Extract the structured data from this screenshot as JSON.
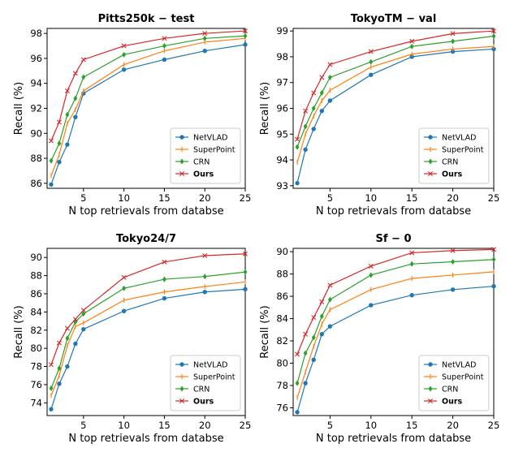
{
  "colors": {
    "NetVLAD": "#1f77b4",
    "SuperPoint": "#ff7f0e",
    "CRN": "#2ca02c",
    "Ours": "#d62728"
  },
  "chart_data": [
    {
      "type": "line",
      "title": "Pitts250k − test",
      "xlabel": "N top retrievals from databse",
      "ylabel": "Recall (%)",
      "x": [
        1,
        2,
        3,
        4,
        5,
        10,
        15,
        20,
        25
      ],
      "xlim": [
        0.5,
        25
      ],
      "ylim": [
        85.6,
        98.4
      ],
      "xticks": [
        5,
        10,
        15,
        20,
        25
      ],
      "yticks": [
        86,
        88,
        90,
        92,
        94,
        96,
        98
      ],
      "legend": "lower-right",
      "series": [
        {
          "name": "NetVLAD",
          "marker": "o",
          "values": [
            85.9,
            87.7,
            89.1,
            91.3,
            93.2,
            95.1,
            95.9,
            96.6,
            97.1
          ]
        },
        {
          "name": "SuperPoint",
          "marker": "|",
          "values": [
            86.6,
            88.3,
            90.8,
            91.9,
            93.4,
            95.5,
            96.6,
            97.3,
            97.6
          ]
        },
        {
          "name": "CRN",
          "marker": "d",
          "values": [
            87.8,
            89.2,
            91.5,
            92.8,
            94.5,
            96.3,
            97.0,
            97.6,
            97.8
          ]
        },
        {
          "name": "Ours",
          "marker": "x",
          "bold": true,
          "values": [
            89.4,
            90.9,
            93.4,
            94.8,
            95.9,
            97.0,
            97.6,
            98.0,
            98.2
          ]
        }
      ]
    },
    {
      "type": "line",
      "title": "TokyoTM − val",
      "xlabel": "N top retrievals from databse",
      "ylabel": "Recall (%)",
      "x": [
        1,
        2,
        3,
        4,
        5,
        10,
        15,
        20,
        25
      ],
      "xlim": [
        0.5,
        25
      ],
      "ylim": [
        92.9,
        99.1
      ],
      "xticks": [
        5,
        10,
        15,
        20,
        25
      ],
      "yticks": [
        93,
        94,
        95,
        96,
        97,
        98,
        99
      ],
      "legend": "lower-right",
      "series": [
        {
          "name": "NetVLAD",
          "marker": "o",
          "values": [
            93.1,
            94.4,
            95.2,
            95.9,
            96.3,
            97.3,
            98.0,
            98.2,
            98.3
          ]
        },
        {
          "name": "SuperPoint",
          "marker": "|",
          "values": [
            93.9,
            95.0,
            95.7,
            96.3,
            96.7,
            97.6,
            98.1,
            98.3,
            98.4
          ]
        },
        {
          "name": "CRN",
          "marker": "d",
          "values": [
            94.5,
            95.3,
            96.0,
            96.6,
            97.2,
            97.8,
            98.4,
            98.6,
            98.8
          ]
        },
        {
          "name": "Ours",
          "marker": "x",
          "bold": true,
          "values": [
            94.8,
            95.9,
            96.6,
            97.2,
            97.7,
            98.2,
            98.6,
            98.9,
            99.0
          ]
        }
      ]
    },
    {
      "type": "line",
      "title": "Tokyo24/7",
      "xlabel": "N top retrievals from databse",
      "ylabel": "Recall (%)",
      "x": [
        1,
        2,
        3,
        4,
        5,
        10,
        15,
        20,
        25
      ],
      "xlim": [
        0.5,
        25
      ],
      "ylim": [
        72.6,
        91.0
      ],
      "xticks": [
        5,
        10,
        15,
        20,
        25
      ],
      "yticks": [
        74,
        76,
        78,
        80,
        82,
        84,
        86,
        88,
        90
      ],
      "legend": "lower-right",
      "series": [
        {
          "name": "NetVLAD",
          "marker": "o",
          "values": [
            73.3,
            76.1,
            78.0,
            80.5,
            82.1,
            84.1,
            85.5,
            86.2,
            86.5
          ]
        },
        {
          "name": "SuperPoint",
          "marker": "|",
          "values": [
            74.8,
            77.0,
            80.3,
            82.4,
            82.8,
            85.3,
            86.2,
            86.8,
            87.3
          ]
        },
        {
          "name": "CRN",
          "marker": "d",
          "values": [
            75.6,
            77.8,
            81.1,
            82.9,
            83.8,
            86.6,
            87.6,
            87.9,
            88.4
          ]
        },
        {
          "name": "Ours",
          "marker": "x",
          "bold": true,
          "values": [
            78.2,
            80.6,
            82.2,
            83.2,
            84.2,
            87.8,
            89.5,
            90.2,
            90.4
          ]
        }
      ]
    },
    {
      "type": "line",
      "title": "Sf − 0",
      "xlabel": "N top retrievals from databse",
      "ylabel": "Recall (%)",
      "x": [
        1,
        2,
        3,
        4,
        5,
        10,
        15,
        20,
        25
      ],
      "xlim": [
        0.5,
        25
      ],
      "ylim": [
        75.3,
        90.3
      ],
      "xticks": [
        5,
        10,
        15,
        20,
        25
      ],
      "yticks": [
        76,
        78,
        80,
        82,
        84,
        86,
        88,
        90
      ],
      "legend": "lower-right",
      "series": [
        {
          "name": "NetVLAD",
          "marker": "o",
          "values": [
            75.6,
            78.2,
            80.3,
            82.6,
            83.3,
            85.2,
            86.1,
            86.6,
            86.9
          ]
        },
        {
          "name": "SuperPoint",
          "marker": "|",
          "values": [
            76.9,
            79.2,
            81.5,
            83.5,
            84.8,
            86.6,
            87.6,
            87.9,
            88.2
          ]
        },
        {
          "name": "CRN",
          "marker": "d",
          "values": [
            78.2,
            80.9,
            82.3,
            84.2,
            85.7,
            87.9,
            88.9,
            89.1,
            89.3
          ]
        },
        {
          "name": "Ours",
          "marker": "x",
          "bold": true,
          "values": [
            80.8,
            82.6,
            84.1,
            85.5,
            87.0,
            88.7,
            89.9,
            90.1,
            90.2
          ]
        }
      ]
    }
  ]
}
